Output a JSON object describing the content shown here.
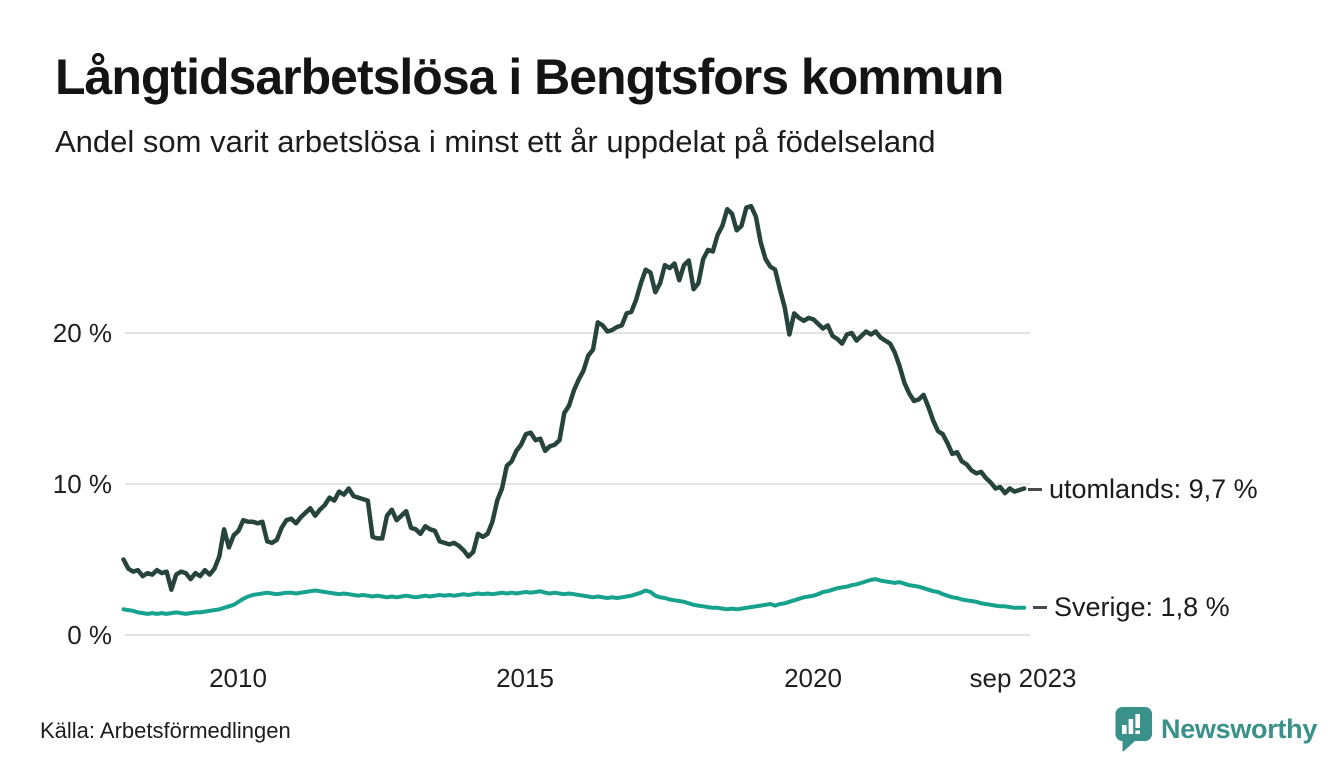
{
  "header": {
    "title": "Långtidsarbetslösa i Bengtsfors kommun",
    "subtitle": "Andel som varit arbetslösa i minst ett år uppdelat på födelseland"
  },
  "chart_data": {
    "type": "line",
    "title": "Långtidsarbetslösa i Bengtsfors kommun",
    "subtitle": "Andel som varit arbetslösa i minst ett år uppdelat på födelseland",
    "unit": "%",
    "frequency": "monthly",
    "x_start": "2008-01",
    "x_end": "2023-09",
    "ylim": [
      0,
      29.5
    ],
    "grid": "horizontal",
    "legend_position": "right-of-line-ends",
    "yticks": [
      {
        "value": 0,
        "label": "0 %"
      },
      {
        "value": 10,
        "label": "10 %"
      },
      {
        "value": 20,
        "label": "20 %"
      }
    ],
    "xticks": [
      {
        "year": 2010,
        "label": "2010"
      },
      {
        "year": 2015,
        "label": "2015"
      },
      {
        "year": 2020,
        "label": "2020"
      },
      {
        "year": 2023.67,
        "label": "sep 2023"
      }
    ],
    "series": [
      {
        "name": "utomlands",
        "end_label": "utomlands: 9,7 %",
        "last_value": "9,7 %",
        "color": "#27443c",
        "stroke_width": 4.5,
        "values": [
          5.0,
          4.4,
          4.2,
          4.3,
          3.9,
          4.1,
          4.0,
          4.3,
          4.1,
          4.2,
          3.0,
          4.0,
          4.2,
          4.1,
          3.7,
          4.1,
          3.9,
          4.3,
          4.0,
          4.4,
          5.2,
          7.0,
          5.8,
          6.6,
          6.9,
          7.6,
          7.5,
          7.5,
          7.4,
          7.5,
          6.2,
          6.1,
          6.3,
          7.1,
          7.6,
          7.7,
          7.4,
          7.8,
          8.1,
          8.4,
          7.9,
          8.3,
          8.6,
          9.1,
          8.9,
          9.5,
          9.3,
          9.7,
          9.2,
          9.1,
          9.0,
          8.9,
          6.5,
          6.4,
          6.4,
          7.9,
          8.3,
          7.6,
          7.9,
          8.2,
          7.1,
          7.0,
          6.7,
          7.2,
          7.0,
          6.9,
          6.2,
          6.1,
          6.0,
          6.1,
          5.9,
          5.6,
          5.2,
          5.5,
          6.7,
          6.5,
          6.7,
          7.5,
          8.9,
          9.7,
          11.2,
          11.5,
          12.2,
          12.6,
          13.3,
          13.4,
          12.9,
          13.0,
          12.2,
          12.5,
          12.6,
          12.9,
          14.7,
          15.2,
          16.2,
          16.9,
          17.5,
          18.5,
          18.9,
          20.7,
          20.5,
          20.1,
          20.2,
          20.4,
          20.5,
          21.3,
          21.4,
          22.2,
          23.3,
          24.2,
          24.0,
          22.7,
          23.3,
          24.5,
          24.3,
          24.6,
          23.5,
          24.5,
          24.8,
          22.9,
          23.3,
          24.9,
          25.5,
          25.4,
          26.5,
          27.1,
          28.2,
          27.9,
          26.8,
          27.1,
          28.3,
          28.4,
          27.7,
          26.0,
          24.9,
          24.4,
          24.2,
          22.9,
          21.7,
          19.9,
          21.3,
          21.0,
          20.8,
          21.0,
          20.9,
          20.6,
          20.3,
          20.5,
          19.8,
          19.6,
          19.3,
          19.9,
          20.0,
          19.5,
          19.8,
          20.1,
          19.9,
          20.1,
          19.7,
          19.5,
          19.3,
          18.7,
          17.8,
          16.7,
          16.0,
          15.5,
          15.6,
          15.9,
          15.1,
          14.2,
          13.5,
          13.3,
          12.7,
          12.0,
          12.1,
          11.5,
          11.3,
          10.9,
          10.7,
          10.8,
          10.4,
          10.1,
          9.7,
          9.8,
          9.4,
          9.7,
          9.5,
          9.6,
          9.7
        ]
      },
      {
        "name": "Sverige",
        "end_label": "Sverige: 1,8 %",
        "last_value": "1,8 %",
        "color": "#16a28d",
        "stroke_width": 4,
        "values": [
          1.7,
          1.65,
          1.6,
          1.5,
          1.45,
          1.4,
          1.45,
          1.4,
          1.45,
          1.4,
          1.45,
          1.5,
          1.45,
          1.4,
          1.45,
          1.5,
          1.5,
          1.55,
          1.6,
          1.65,
          1.7,
          1.8,
          1.9,
          2.0,
          2.2,
          2.4,
          2.55,
          2.65,
          2.7,
          2.75,
          2.8,
          2.75,
          2.7,
          2.75,
          2.8,
          2.8,
          2.75,
          2.8,
          2.85,
          2.9,
          2.95,
          2.9,
          2.85,
          2.8,
          2.75,
          2.7,
          2.75,
          2.7,
          2.65,
          2.6,
          2.65,
          2.6,
          2.55,
          2.6,
          2.55,
          2.5,
          2.55,
          2.5,
          2.55,
          2.6,
          2.55,
          2.5,
          2.55,
          2.6,
          2.55,
          2.6,
          2.65,
          2.6,
          2.65,
          2.6,
          2.65,
          2.7,
          2.65,
          2.7,
          2.75,
          2.7,
          2.75,
          2.7,
          2.75,
          2.8,
          2.75,
          2.8,
          2.75,
          2.8,
          2.85,
          2.8,
          2.85,
          2.9,
          2.8,
          2.75,
          2.8,
          2.75,
          2.7,
          2.75,
          2.7,
          2.65,
          2.6,
          2.55,
          2.5,
          2.55,
          2.5,
          2.45,
          2.5,
          2.45,
          2.5,
          2.55,
          2.6,
          2.7,
          2.8,
          2.95,
          2.85,
          2.6,
          2.5,
          2.45,
          2.35,
          2.3,
          2.25,
          2.2,
          2.1,
          2.0,
          1.95,
          1.9,
          1.85,
          1.8,
          1.8,
          1.75,
          1.7,
          1.75,
          1.7,
          1.75,
          1.8,
          1.85,
          1.9,
          1.95,
          2.0,
          2.05,
          1.95,
          2.05,
          2.1,
          2.2,
          2.3,
          2.4,
          2.5,
          2.55,
          2.6,
          2.7,
          2.85,
          2.9,
          3.0,
          3.1,
          3.15,
          3.2,
          3.3,
          3.35,
          3.45,
          3.55,
          3.65,
          3.7,
          3.6,
          3.55,
          3.5,
          3.45,
          3.5,
          3.4,
          3.3,
          3.25,
          3.2,
          3.1,
          3.0,
          2.9,
          2.85,
          2.7,
          2.6,
          2.5,
          2.45,
          2.35,
          2.3,
          2.25,
          2.2,
          2.1,
          2.05,
          2.0,
          1.95,
          1.9,
          1.9,
          1.85,
          1.8,
          1.8,
          1.8
        ]
      }
    ]
  },
  "colors": {
    "grid": "#e4e4e4",
    "brand_teal": "#3a9189",
    "label_dash": "#4a4a4a"
  },
  "footer": {
    "source": "Källa: Arbetsförmedlingen",
    "brand": "Newsworthy"
  }
}
